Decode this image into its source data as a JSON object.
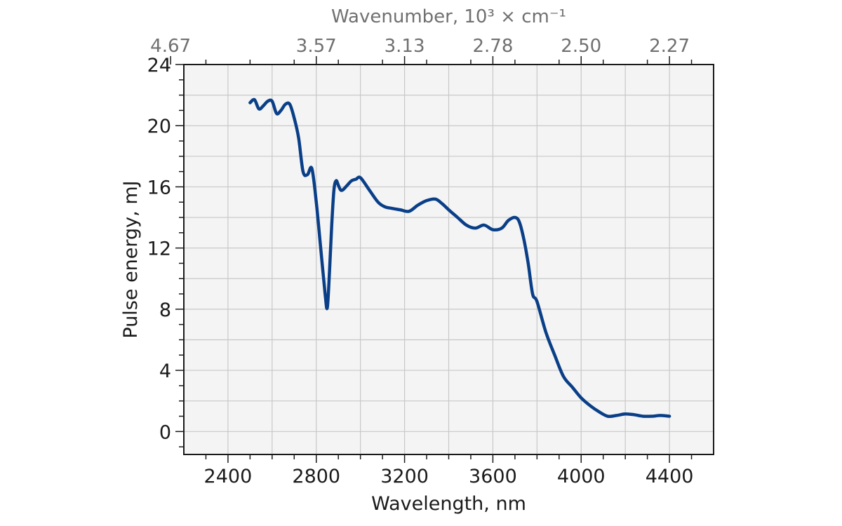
{
  "chart_data": {
    "type": "line",
    "xlabel": "Wavelength, nm",
    "ylabel": "Pulse energy, mJ",
    "top_xlabel": "Wavenumber, 10³ × cm⁻¹",
    "xlim": [
      2200,
      4600
    ],
    "ylim": [
      -1.5,
      24
    ],
    "x_ticks": [
      2400,
      2800,
      3200,
      3600,
      4000,
      4400
    ],
    "x_tick_labels": [
      "2400",
      "2800",
      "3200",
      "3600",
      "4000",
      "4400"
    ],
    "y_ticks": [
      0,
      4,
      8,
      12,
      16,
      20,
      24
    ],
    "y_tick_labels": [
      "0",
      "4",
      "8",
      "12",
      "16",
      "20",
      "24"
    ],
    "top_ticks_wavelength": [
      2140,
      2800,
      3200,
      3600,
      4000,
      4400
    ],
    "top_tick_labels": [
      "4.67",
      "3.57",
      "3.13",
      "2.78",
      "2.50",
      "2.27"
    ],
    "grid": true,
    "background": "#f4f4f4",
    "grid_color": "#c8c8c8",
    "series": [
      {
        "color": "#0a3f88",
        "x": [
          2500,
          2520,
          2540,
          2560,
          2580,
          2600,
          2620,
          2640,
          2660,
          2680,
          2700,
          2720,
          2740,
          2760,
          2780,
          2800,
          2820,
          2840,
          2850,
          2860,
          2870,
          2880,
          2890,
          2900,
          2910,
          2920,
          2940,
          2960,
          2980,
          3000,
          3040,
          3080,
          3110,
          3140,
          3180,
          3220,
          3260,
          3300,
          3340,
          3370,
          3400,
          3440,
          3480,
          3520,
          3560,
          3600,
          3640,
          3670,
          3700,
          3720,
          3740,
          3760,
          3780,
          3800,
          3840,
          3880,
          3920,
          3960,
          4000,
          4040,
          4080,
          4120,
          4160,
          4200,
          4240,
          4280,
          4320,
          4360,
          4400
        ],
        "y": [
          21.5,
          21.7,
          21.1,
          21.3,
          21.6,
          21.6,
          20.8,
          21.0,
          21.4,
          21.4,
          20.5,
          19.2,
          17.0,
          16.8,
          17.2,
          15.0,
          12.0,
          9.0,
          8.1,
          10.5,
          13.5,
          15.8,
          16.4,
          16.1,
          15.8,
          15.8,
          16.1,
          16.4,
          16.5,
          16.6,
          15.8,
          15.0,
          14.7,
          14.6,
          14.5,
          14.4,
          14.8,
          15.1,
          15.2,
          14.9,
          14.5,
          14.0,
          13.5,
          13.3,
          13.5,
          13.2,
          13.3,
          13.8,
          14.0,
          13.7,
          12.6,
          11.0,
          9.0,
          8.5,
          6.5,
          5.0,
          3.6,
          2.9,
          2.2,
          1.7,
          1.3,
          1.0,
          1.05,
          1.15,
          1.1,
          1.0,
          1.0,
          1.05,
          1.0
        ]
      }
    ]
  }
}
